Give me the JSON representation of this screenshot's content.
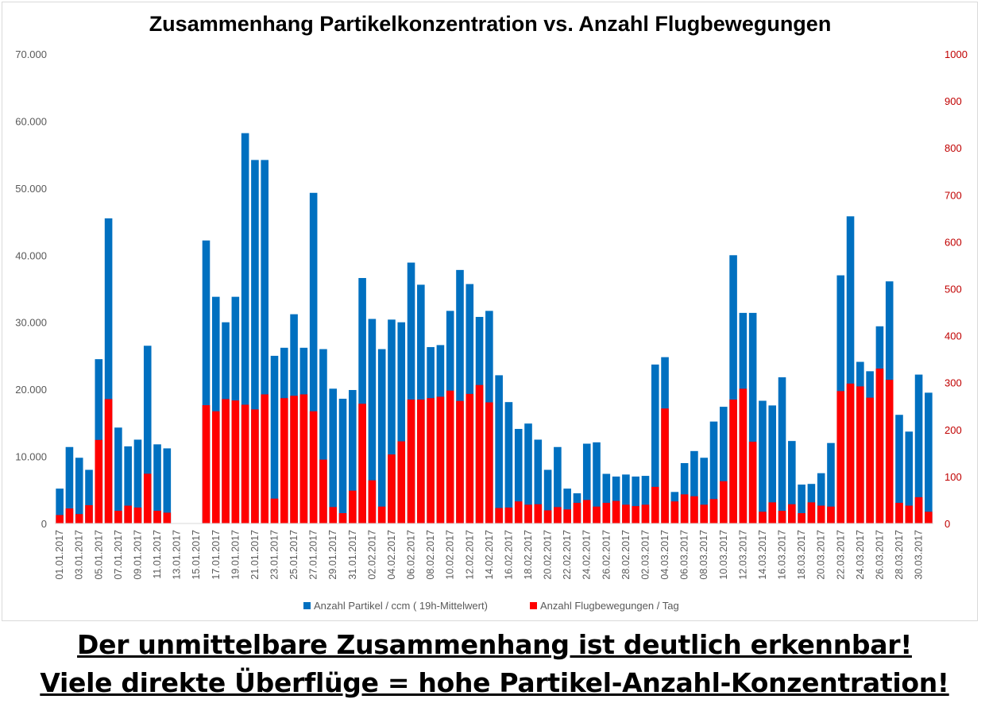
{
  "chart_data": {
    "type": "bar",
    "title": "Zusammenhang Partikelkonzentration vs. Anzahl Flugbewegungen",
    "xlabel": "",
    "ylabel": "",
    "ylim": [
      0,
      70000
    ],
    "y2lim": [
      0,
      1000
    ],
    "y_ticks": [
      "0",
      "10.000",
      "20.000",
      "30.000",
      "40.000",
      "50.000",
      "60.000",
      "70.000"
    ],
    "y2_ticks": [
      "0",
      "100",
      "200",
      "300",
      "400",
      "500",
      "600",
      "700",
      "800",
      "900",
      "1000"
    ],
    "legend_position": "bottom",
    "grid": false,
    "categories": [
      "01.01.2017",
      "02.01.2017",
      "03.01.2017",
      "04.01.2017",
      "05.01.2017",
      "06.01.2017",
      "07.01.2017",
      "08.01.2017",
      "09.01.2017",
      "10.01.2017",
      "11.01.2017",
      "12.01.2017",
      "13.01.2017",
      "14.01.2017",
      "15.01.2017",
      "16.01.2017",
      "17.01.2017",
      "18.01.2017",
      "19.01.2017",
      "20.01.2017",
      "21.01.2017",
      "22.01.2017",
      "23.01.2017",
      "24.01.2017",
      "25.01.2017",
      "26.01.2017",
      "27.01.2017",
      "28.01.2017",
      "29.01.2017",
      "30.01.2017",
      "31.01.2017",
      "01.02.2017",
      "02.02.2017",
      "03.02.2017",
      "04.02.2017",
      "05.02.2017",
      "06.02.2017",
      "07.02.2017",
      "08.02.2017",
      "09.02.2017",
      "10.02.2017",
      "11.02.2017",
      "12.02.2017",
      "13.02.2017",
      "14.02.2017",
      "15.02.2017",
      "16.02.2017",
      "17.02.2017",
      "18.02.2017",
      "19.02.2017",
      "20.02.2017",
      "21.02.2017",
      "22.02.2017",
      "23.02.2017",
      "24.02.2017",
      "25.02.2017",
      "26.02.2017",
      "27.02.2017",
      "28.02.2017",
      "01.03.2017",
      "02.03.2017",
      "03.03.2017",
      "04.03.2017",
      "05.03.2017",
      "06.03.2017",
      "07.03.2017",
      "08.03.2017",
      "09.03.2017",
      "10.03.2017",
      "11.03.2017",
      "12.03.2017",
      "13.03.2017",
      "14.03.2017",
      "15.03.2017",
      "16.03.2017",
      "17.03.2017",
      "18.03.2017",
      "19.03.2017",
      "20.03.2017",
      "21.03.2017",
      "22.03.2017",
      "23.03.2017",
      "24.03.2017",
      "25.03.2017",
      "26.03.2017",
      "27.03.2017",
      "28.03.2017",
      "29.03.2017",
      "30.03.2017",
      "31.03.2017"
    ],
    "tick_labels": [
      "01.01.2017",
      "03.01.2017",
      "05.01.2017",
      "07.01.2017",
      "09.01.2017",
      "11.01.2017",
      "13.01.2017",
      "15.01.2017",
      "17.01.2017",
      "19.01.2017",
      "21.01.2017",
      "23.01.2017",
      "25.01.2017",
      "27.01.2017",
      "29.01.2017",
      "31.01.2017",
      "02.02.2017",
      "04.02.2017",
      "06.02.2017",
      "08.02.2017",
      "10.02.2017",
      "12.02.2017",
      "14.02.2017",
      "16.02.2017",
      "18.02.2017",
      "20.02.2017",
      "22.02.2017",
      "24.02.2017",
      "26.02.2017",
      "28.02.2017",
      "02.03.2017",
      "04.03.2017",
      "06.03.2017",
      "08.03.2017",
      "10.03.2017",
      "12.03.2017",
      "14.03.2017",
      "16.03.2017",
      "18.03.2017",
      "20.03.2017",
      "22.03.2017",
      "24.03.2017",
      "26.03.2017",
      "28.03.2017",
      "30.03.2017"
    ],
    "series": [
      {
        "name": "Anzahl Partikel / ccm ( 19h-Mittelwert)",
        "axis": "left",
        "color": "#0070C0",
        "values": [
          5200,
          11400,
          9800,
          8000,
          24500,
          45500,
          14300,
          11500,
          12500,
          26500,
          11800,
          11200,
          null,
          null,
          null,
          42200,
          33800,
          30000,
          33800,
          58200,
          54200,
          54200,
          25000,
          26200,
          31200,
          26200,
          49300,
          26000,
          20100,
          18600,
          19900,
          36600,
          30500,
          26000,
          30400,
          30000,
          38900,
          35600,
          26300,
          26600,
          31700,
          37800,
          35700,
          30800,
          31700,
          22100,
          18100,
          14100,
          14900,
          12500,
          8000,
          11400,
          5200,
          4500,
          11900,
          12100,
          7400,
          7000,
          7300,
          7000,
          7100,
          23700,
          24800,
          4700,
          9000,
          10800,
          9800,
          15200,
          17400,
          40000,
          31400,
          31400,
          18300,
          17600,
          21800,
          12300,
          5800,
          5900,
          7500,
          12000,
          37000,
          45800,
          24100,
          22700,
          29400,
          36100,
          16200,
          13700,
          22200,
          19500
        ]
      },
      {
        "name": "Anzahl Flugbewegungen / Tag",
        "axis": "right",
        "color": "#FF0000",
        "values": [
          18,
          32,
          20,
          39,
          178,
          265,
          27,
          38,
          34,
          106,
          27,
          23,
          null,
          null,
          null,
          252,
          239,
          265,
          262,
          253,
          243,
          275,
          53,
          267,
          272,
          275,
          239,
          136,
          35,
          22,
          70,
          255,
          92,
          36,
          147,
          175,
          264,
          264,
          267,
          270,
          283,
          261,
          276,
          295,
          258,
          33,
          34,
          47,
          40,
          41,
          28,
          35,
          30,
          44,
          50,
          36,
          44,
          48,
          40,
          37,
          40,
          78,
          245,
          47,
          62,
          58,
          40,
          52,
          90,
          264,
          287,
          174,
          25,
          45,
          27,
          41,
          22,
          45,
          38,
          36,
          282,
          298,
          292,
          268,
          330,
          306,
          44,
          38,
          56,
          25
        ]
      }
    ]
  },
  "captions": {
    "line1": "Der unmittelbare Zusammenhang ist deutlich erkennbar!",
    "line2": "Viele direkte Überflüge = hohe Partikel-Anzahl-Konzentration!"
  }
}
